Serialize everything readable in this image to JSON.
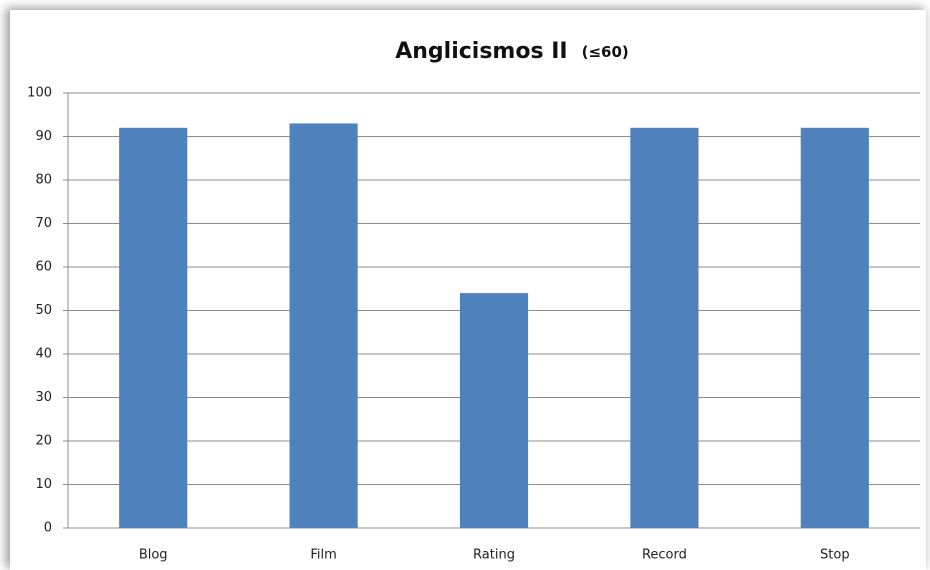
{
  "chart_data": {
    "type": "bar",
    "title": "Anglicismos II",
    "subtitle": "(≤60)",
    "categories": [
      "Blog",
      "Film",
      "Rating",
      "Record",
      "Stop"
    ],
    "values": [
      92,
      93,
      54,
      92,
      92
    ],
    "color": "#4f81bd",
    "ylim": [
      0,
      100
    ],
    "yticks": [
      0,
      10,
      20,
      30,
      40,
      50,
      60,
      70,
      80,
      90,
      100
    ],
    "grid": true
  }
}
